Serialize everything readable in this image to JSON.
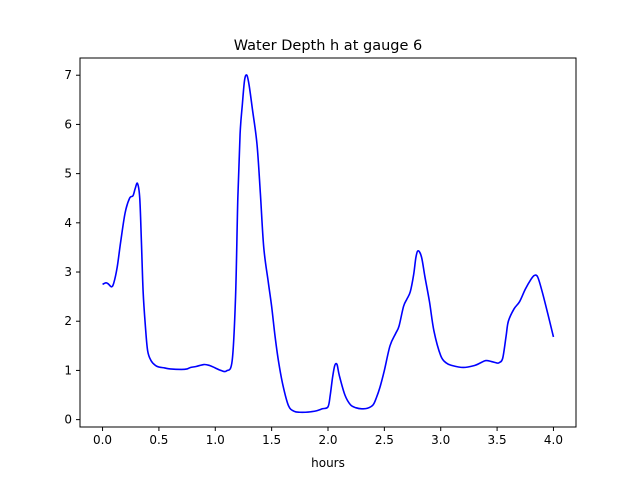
{
  "chart_data": {
    "type": "line",
    "title": "Water Depth h at gauge 6",
    "xlabel": "hours",
    "ylabel": "",
    "xlim": [
      -0.2,
      4.2
    ],
    "ylim": [
      -0.15,
      7.35
    ],
    "xticks": [
      0.0,
      0.5,
      1.0,
      1.5,
      2.0,
      2.5,
      3.0,
      3.5,
      4.0
    ],
    "xtick_labels": [
      "0.0",
      "0.5",
      "1.0",
      "1.5",
      "2.0",
      "2.5",
      "3.0",
      "3.5",
      "4.0"
    ],
    "yticks": [
      0,
      1,
      2,
      3,
      4,
      5,
      6,
      7
    ],
    "ytick_labels": [
      "0",
      "1",
      "2",
      "3",
      "4",
      "5",
      "6",
      "7"
    ],
    "grid": false,
    "series": [
      {
        "color": "#0000ff",
        "x": [
          0.0,
          0.03,
          0.05,
          0.08,
          0.1,
          0.13,
          0.16,
          0.2,
          0.24,
          0.27,
          0.29,
          0.31,
          0.33,
          0.345,
          0.36,
          0.38,
          0.4,
          0.43,
          0.47,
          0.5,
          0.55,
          0.6,
          0.7,
          0.75,
          0.78,
          0.83,
          0.9,
          0.95,
          1.0,
          1.05,
          1.1,
          1.15,
          1.18,
          1.2,
          1.22,
          1.24,
          1.26,
          1.28,
          1.3,
          1.33,
          1.37,
          1.4,
          1.43,
          1.47,
          1.5,
          1.53,
          1.56,
          1.6,
          1.65,
          1.7,
          1.75,
          1.8,
          1.85,
          1.9,
          1.95,
          2.0,
          2.02,
          2.04,
          2.06,
          2.08,
          2.1,
          2.15,
          2.2,
          2.25,
          2.3,
          2.35,
          2.4,
          2.43,
          2.46,
          2.5,
          2.55,
          2.6,
          2.63,
          2.67,
          2.7,
          2.73,
          2.76,
          2.78,
          2.8,
          2.83,
          2.86,
          2.9,
          2.94,
          3.0,
          3.05,
          3.1,
          3.2,
          3.3,
          3.35,
          3.4,
          3.45,
          3.5,
          3.52,
          3.55,
          3.58,
          3.6,
          3.65,
          3.7,
          3.75,
          3.8,
          3.83,
          3.86,
          3.9,
          3.95,
          4.0
        ],
        "y": [
          2.75,
          2.78,
          2.76,
          2.7,
          2.78,
          3.1,
          3.6,
          4.2,
          4.5,
          4.55,
          4.7,
          4.8,
          4.5,
          3.6,
          2.6,
          1.9,
          1.4,
          1.2,
          1.1,
          1.07,
          1.05,
          1.03,
          1.02,
          1.03,
          1.06,
          1.08,
          1.12,
          1.1,
          1.05,
          1.0,
          0.99,
          1.2,
          2.5,
          4.5,
          5.8,
          6.4,
          6.9,
          7.0,
          6.8,
          6.3,
          5.6,
          4.6,
          3.5,
          2.8,
          2.3,
          1.7,
          1.2,
          0.7,
          0.28,
          0.17,
          0.15,
          0.15,
          0.16,
          0.18,
          0.22,
          0.26,
          0.5,
          0.85,
          1.1,
          1.12,
          0.9,
          0.5,
          0.3,
          0.24,
          0.22,
          0.23,
          0.3,
          0.45,
          0.65,
          1.0,
          1.5,
          1.75,
          1.9,
          2.3,
          2.45,
          2.6,
          2.95,
          3.3,
          3.43,
          3.3,
          2.9,
          2.4,
          1.8,
          1.3,
          1.15,
          1.1,
          1.06,
          1.1,
          1.15,
          1.2,
          1.18,
          1.15,
          1.16,
          1.25,
          1.7,
          2.0,
          2.25,
          2.4,
          2.65,
          2.85,
          2.93,
          2.9,
          2.6,
          2.15,
          1.68
        ]
      }
    ]
  }
}
